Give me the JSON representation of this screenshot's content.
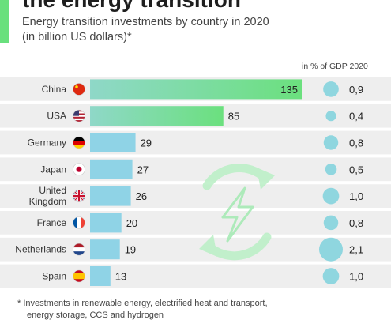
{
  "header": {
    "title": "the energy transition",
    "subtitle_line1": "Energy transition investments by country in 2020",
    "subtitle_line2": "(in billion US dollars)*",
    "gdp_column_label": "in % of GDP 2020"
  },
  "footnote": {
    "line1": "* Investments in renewable energy, electrified heat and transport,",
    "line2": "energy storage, CCS and hydrogen"
  },
  "colors": {
    "accent": "#69e07d",
    "bar_top": "#6fe085",
    "bar_other": "#8fd3e6",
    "bubble": "#8fd6df",
    "row_band": "#eeeeee"
  },
  "chart_data": {
    "type": "bar",
    "orientation": "horizontal",
    "categories": [
      "China",
      "USA",
      "Germany",
      "Japan",
      "United Kingdom",
      "France",
      "Netherlands",
      "Spain"
    ],
    "category_labels": [
      [
        "China"
      ],
      [
        "USA"
      ],
      [
        "Germany"
      ],
      [
        "Japan"
      ],
      [
        "United",
        "Kingdom"
      ],
      [
        "France"
      ],
      [
        "Netherlands"
      ],
      [
        "Spain"
      ]
    ],
    "flags": [
      "china-flag-icon",
      "usa-flag-icon",
      "germany-flag-icon",
      "japan-flag-icon",
      "uk-flag-icon",
      "france-flag-icon",
      "netherlands-flag-icon",
      "spain-flag-icon"
    ],
    "values": [
      135,
      85,
      29,
      27,
      26,
      20,
      19,
      13
    ],
    "value_labels": [
      "135",
      "85",
      "29",
      "27",
      "26",
      "20",
      "19",
      "13"
    ],
    "gdp_share": [
      0.9,
      0.4,
      0.8,
      0.5,
      1.0,
      0.8,
      2.1,
      1.0
    ],
    "gdp_labels": [
      "0,9",
      "0,4",
      "0,8",
      "0,5",
      "1,0",
      "0,8",
      "2,1",
      "1,0"
    ],
    "xlim": [
      0,
      135
    ]
  }
}
